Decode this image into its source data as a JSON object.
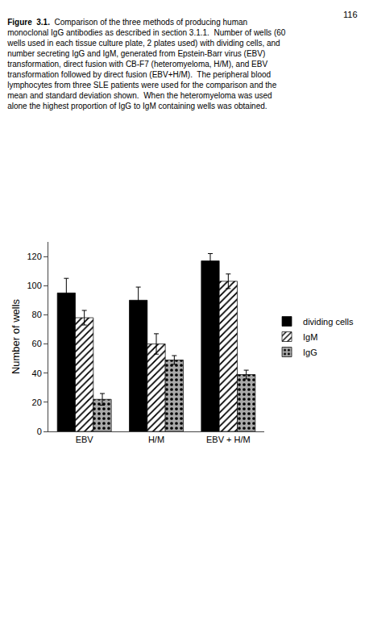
{
  "chart_data": {
    "type": "bar",
    "title": "Figure  3.1.  Comparison of the three methods of producing human\nmonoclonal IgG antibodies as described in section 3.1.1.  Number of wells (60\nwells used in each tissue culture plate, 2 plates used) with dividing cells, and\nnumber secreting IgG and IgM, generated from Epstein-Barr virus (EBV)\ntransformation, direct fusion with CB-F7 (heteromyeloma, H/M), and EBV\ntransformation followed by direct fusion (EBV+H/M).  The peripheral blood\nlymphocytes from three SLE patients were used for the comparison and the\nmean and standard deviation shown.  When the heteromyeloma was used\nalone the highest proportion of IgG to IgM containing wells was obtained.",
    "annotations": [
      "116"
    ],
    "categories": [
      "EBV",
      "H/M",
      "EBV + H/M"
    ],
    "series": [
      {
        "name": "dividing cells",
        "color": "#000000",
        "values": [
          95,
          90,
          117
        ],
        "errors": [
          10,
          9,
          5
        ]
      },
      {
        "name": "IgM",
        "color": "#ffffff",
        "values": [
          78,
          60,
          103
        ],
        "errors": [
          5,
          7,
          5
        ]
      },
      {
        "name": "IgG",
        "color": "#aaaaaa",
        "values": [
          22,
          49,
          39
        ],
        "errors": [
          4,
          3,
          3
        ]
      }
    ],
    "ylabel": "Number of wells",
    "ylim": [
      0,
      130
    ],
    "yticks": [
      0,
      20,
      40,
      60,
      80,
      100,
      120
    ],
    "grid": false,
    "legend": "right"
  }
}
